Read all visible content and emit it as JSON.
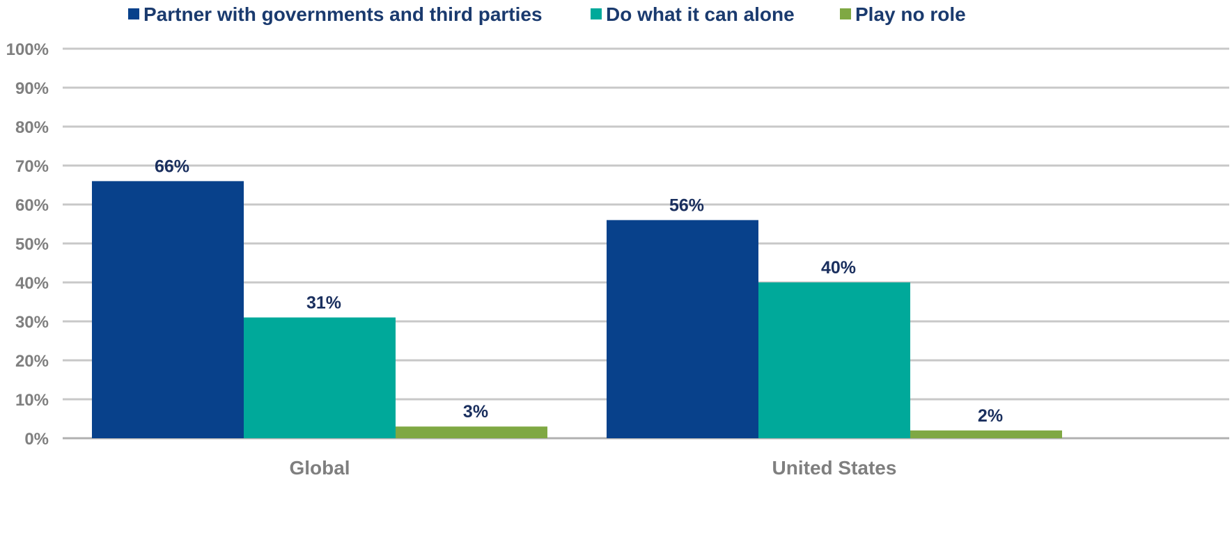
{
  "chart_data": {
    "type": "bar",
    "title": "",
    "xlabel": "",
    "ylabel": "",
    "categories": [
      "Global",
      "United States"
    ],
    "series": [
      {
        "name": "Partner with governments and third parties",
        "values": [
          66,
          56
        ],
        "labels": [
          "66%",
          "56%"
        ],
        "color": "#08418b"
      },
      {
        "name": "Do what it can alone",
        "values": [
          31,
          40
        ],
        "labels": [
          "31%",
          "40%"
        ],
        "color": "#00a99a"
      },
      {
        "name": "Play no role",
        "values": [
          3,
          2
        ],
        "labels": [
          "3%",
          "2%"
        ],
        "color": "#7fa843"
      }
    ],
    "ylim": [
      0,
      100
    ],
    "yticks": [
      "0%",
      "10%",
      "20%",
      "30%",
      "40%",
      "50%",
      "60%",
      "70%",
      "80%",
      "90%",
      "100%"
    ],
    "grid": true,
    "legend_position": "top"
  }
}
